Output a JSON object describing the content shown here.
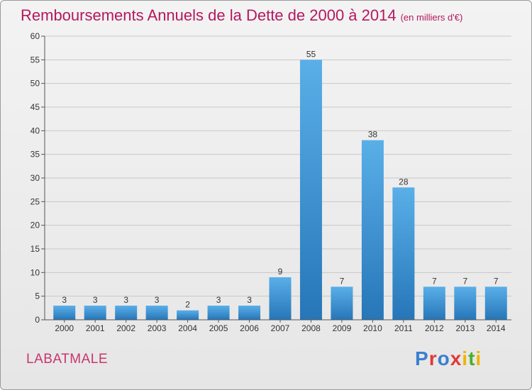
{
  "title": "Remboursements Annuels de la Dette de 2000 à 2014",
  "unit": "(en milliers d'€)",
  "commune": "LABATMALE",
  "logo": {
    "text": "Proxiti",
    "letters": [
      {
        "ch": "P",
        "color": "#3a7fd0"
      },
      {
        "ch": "r",
        "color": "#e03a3a"
      },
      {
        "ch": "o",
        "color": "#3a7fd0"
      },
      {
        "ch": "x",
        "color": "#e03a3a"
      },
      {
        "ch": "i",
        "color": "#f0b400"
      },
      {
        "ch": "t",
        "color": "#4caf2a"
      },
      {
        "ch": "i",
        "color": "#f0b400"
      }
    ]
  },
  "colors": {
    "bar_light": "#5aafe8",
    "bar_dark": "#2676b8",
    "axis": "#555555",
    "grid": "#c8c8c8",
    "title": "#b5185e"
  },
  "chart_data": {
    "type": "bar",
    "title": "Remboursements Annuels de la Dette de 2000 à 2014",
    "categories": [
      "2000",
      "2001",
      "2002",
      "2003",
      "2004",
      "2005",
      "2006",
      "2007",
      "2008",
      "2009",
      "2010",
      "2011",
      "2012",
      "2013",
      "2014"
    ],
    "values": [
      3,
      3,
      3,
      3,
      2,
      3,
      3,
      9,
      55,
      7,
      38,
      28,
      7,
      7,
      7
    ],
    "xlabel": "",
    "ylabel": "",
    "ylim": [
      0,
      60
    ],
    "yticks": [
      0,
      5,
      10,
      15,
      20,
      25,
      30,
      35,
      40,
      45,
      50,
      55,
      60
    ],
    "grid": true,
    "legend": "none"
  }
}
